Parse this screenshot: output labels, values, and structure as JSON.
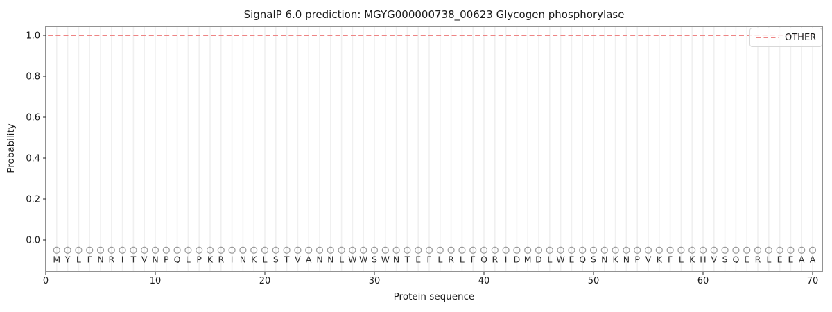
{
  "chart_data": {
    "type": "line",
    "title": "SignalP 6.0 prediction: MGYG000000738_00623 Glycogen phosphorylase",
    "xlabel": "Protein sequence",
    "ylabel": "Probability",
    "xlim": [
      0,
      71
    ],
    "ylim": [
      -0.155,
      1.05
    ],
    "x_ticks": [
      "0",
      "10",
      "20",
      "30",
      "40",
      "50",
      "60",
      "70"
    ],
    "y_ticks": [
      "0.0",
      "0.2",
      "0.4",
      "0.6",
      "0.8",
      "1.0"
    ],
    "grid": {
      "vertical_line_per_residue": true,
      "horizontal": false
    },
    "sequence": "MYLFNRITVNPQLPKRINKLSTVANNLWWSWNTEFLRLFQRIDMDLWEQSNKNPVKFLKHVSQERLEEAA",
    "series": [
      {
        "name": "OTHER",
        "style": "dashed",
        "color": "#ee8585",
        "x": [
          1,
          70
        ],
        "y": [
          1.0,
          1.0
        ],
        "note": "constant probability 1.0 across all 70 residues"
      }
    ],
    "residue_markers": {
      "shape": "open-circle",
      "color": "#9a9a9a",
      "y": -0.05
    },
    "residue_letters_y": -0.095,
    "legend": {
      "position": "upper-right",
      "entries": [
        {
          "label": "OTHER",
          "color": "#ee8585",
          "style": "dashed"
        }
      ]
    }
  },
  "colors": {
    "background": "#ffffff",
    "axis": "#262626",
    "text": "#1a1a1a",
    "gridline": "#f0f0f0",
    "other_line": "#ee8585",
    "marker": "#9a9a9a",
    "letter": "#2b2b2b",
    "legend_border": "#d8d8d8"
  }
}
